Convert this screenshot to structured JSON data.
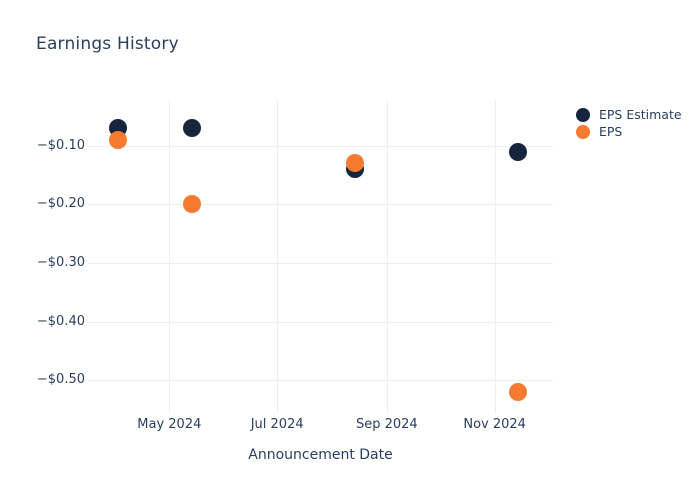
{
  "colors": {
    "background": "#ffffff",
    "text": "#2a3f5f",
    "grid": "#ebf0f8",
    "eps_estimate": "#16243e",
    "eps": "#f47b2f"
  },
  "chart_data": {
    "type": "scatter",
    "title": "Earnings History",
    "xlabel": "Announcement Date",
    "ylabel": "",
    "grid": true,
    "legend_position": "right",
    "x_range": [
      "2024-03-16",
      "2024-12-04"
    ],
    "y_range": [
      -0.022,
      -0.556
    ],
    "x_ticks": [
      {
        "value": "2024-05-01",
        "label": "May 2024"
      },
      {
        "value": "2024-07-01",
        "label": "Jul 2024"
      },
      {
        "value": "2024-09-01",
        "label": "Sep 2024"
      },
      {
        "value": "2024-11-01",
        "label": "Nov 2024"
      }
    ],
    "y_ticks": [
      {
        "value": -0.1,
        "label": "−$0.10"
      },
      {
        "value": -0.2,
        "label": "−$0.20"
      },
      {
        "value": -0.3,
        "label": "−$0.30"
      },
      {
        "value": -0.4,
        "label": "−$0.40"
      },
      {
        "value": -0.5,
        "label": "−$0.50"
      }
    ],
    "x": [
      "2024-04-02",
      "2024-05-14",
      "2024-08-14",
      "2024-11-14"
    ],
    "series": [
      {
        "name": "EPS Estimate",
        "color": "#16243e",
        "marker": "circle",
        "values": [
          -0.07,
          -0.07,
          -0.14,
          -0.11
        ]
      },
      {
        "name": "EPS",
        "color": "#f47b2f",
        "marker": "circle",
        "values": [
          -0.09,
          -0.2,
          -0.13,
          -0.52
        ]
      }
    ]
  }
}
